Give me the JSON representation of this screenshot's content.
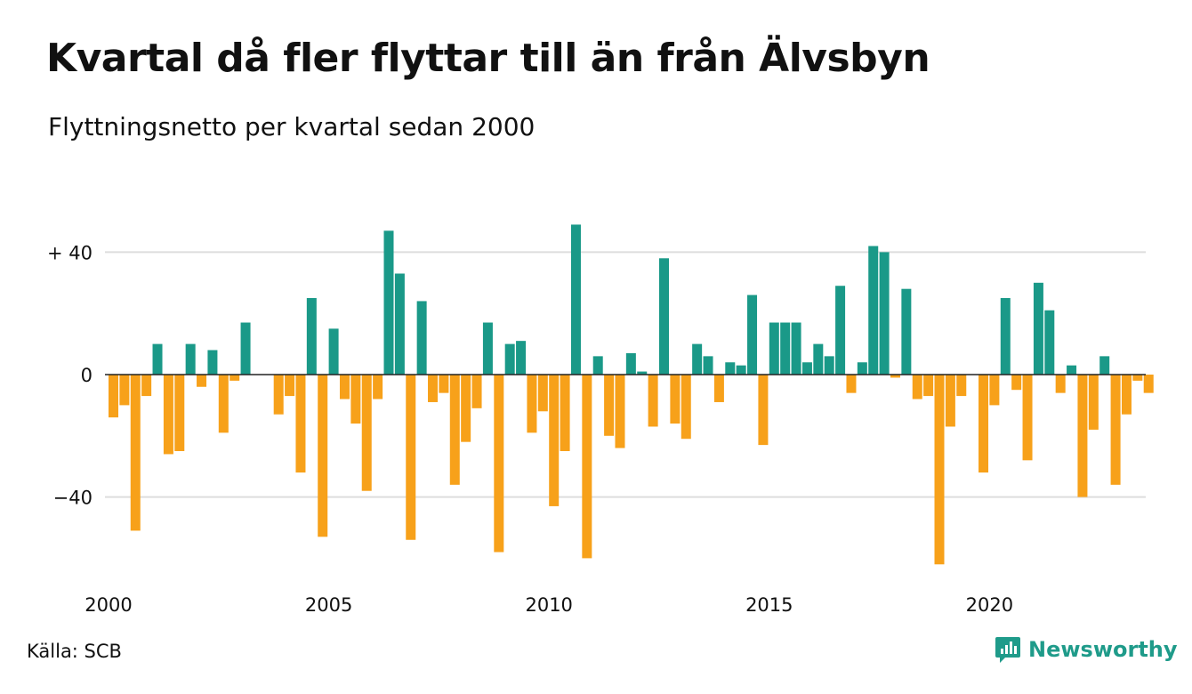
{
  "title": "Kvartal då fler flyttar till än från Älvsbyn",
  "subtitle": "Flyttningsnetto per kvartal sedan 2000",
  "source": "Källa: SCB",
  "brand": {
    "name": "Newsworthy",
    "logo_icon": "newsworthy-chart-bubble-icon"
  },
  "colors": {
    "positive": "#1a9988",
    "negative": "#f7a11a",
    "grid": "#dddddd",
    "zero_line": "#222222"
  },
  "chart_data": {
    "type": "bar",
    "start_year": 2000,
    "periods_per_year": 4,
    "ylim": [
      -66,
      52
    ],
    "yticks": [
      {
        "value": 40,
        "label": "+ 40"
      },
      {
        "value": 0,
        "label": "0"
      },
      {
        "value": -40,
        "label": "−40"
      }
    ],
    "xticks": [
      "2000",
      "2005",
      "2010",
      "2015",
      "2020"
    ],
    "values": [
      -14,
      -10,
      -51,
      -7,
      10,
      -26,
      -25,
      10,
      -4,
      8,
      -19,
      -2,
      17,
      0,
      0,
      -13,
      -7,
      -32,
      25,
      -53,
      15,
      -8,
      -16,
      -38,
      -8,
      47,
      33,
      -54,
      24,
      -9,
      -6,
      -36,
      -22,
      -11,
      17,
      -58,
      10,
      11,
      -19,
      -12,
      -43,
      -25,
      49,
      -60,
      6,
      -20,
      -24,
      7,
      1,
      -17,
      38,
      -16,
      -21,
      10,
      6,
      -9,
      4,
      3,
      26,
      -23,
      17,
      17,
      17,
      4,
      10,
      6,
      29,
      -6,
      4,
      42,
      40,
      -1,
      28,
      -8,
      -7,
      -62,
      -17,
      -7,
      0,
      -32,
      -10,
      25,
      -5,
      -28,
      30,
      21,
      -6,
      3,
      -40,
      -18,
      6,
      -36,
      -13,
      -2,
      -6
    ]
  }
}
